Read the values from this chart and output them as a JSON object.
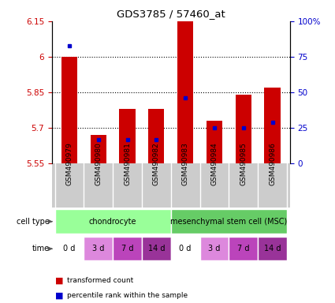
{
  "title": "GDS3785 / 57460_at",
  "samples": [
    "GSM490979",
    "GSM490980",
    "GSM490981",
    "GSM490982",
    "GSM490983",
    "GSM490984",
    "GSM490985",
    "GSM490986"
  ],
  "transformed_count": [
    6.0,
    5.67,
    5.78,
    5.78,
    6.21,
    5.73,
    5.84,
    5.87
  ],
  "percentile_rank": [
    0.83,
    0.17,
    0.17,
    0.17,
    0.46,
    0.25,
    0.25,
    0.29
  ],
  "ylim": [
    5.55,
    6.15
  ],
  "yticks": [
    5.55,
    5.7,
    5.85,
    6.0,
    6.15
  ],
  "ytick_labels": [
    "5.55",
    "5.7",
    "5.85",
    "6",
    "6.15"
  ],
  "right_yticks": [
    0.0,
    0.25,
    0.5,
    0.75,
    1.0
  ],
  "right_ytick_labels": [
    "0",
    "25",
    "50",
    "75",
    "100%"
  ],
  "bar_color": "#cc0000",
  "percentile_color": "#0000cc",
  "bar_width": 0.55,
  "cell_type_labels": [
    "chondrocyte",
    "mesenchymal stem cell (MSC)"
  ],
  "cell_type_colors": [
    "#99ff99",
    "#66cc66"
  ],
  "time_labels": [
    "0 d",
    "3 d",
    "7 d",
    "14 d",
    "0 d",
    "3 d",
    "7 d",
    "14 d"
  ],
  "time_colors": [
    "#ffffff",
    "#dd88dd",
    "#bb44bb",
    "#993399",
    "#ffffff",
    "#dd88dd",
    "#bb44bb",
    "#993399"
  ],
  "label_color_red": "#cc0000",
  "label_color_blue": "#0000cc",
  "background_color": "#ffffff",
  "sample_box_color": "#cccccc"
}
